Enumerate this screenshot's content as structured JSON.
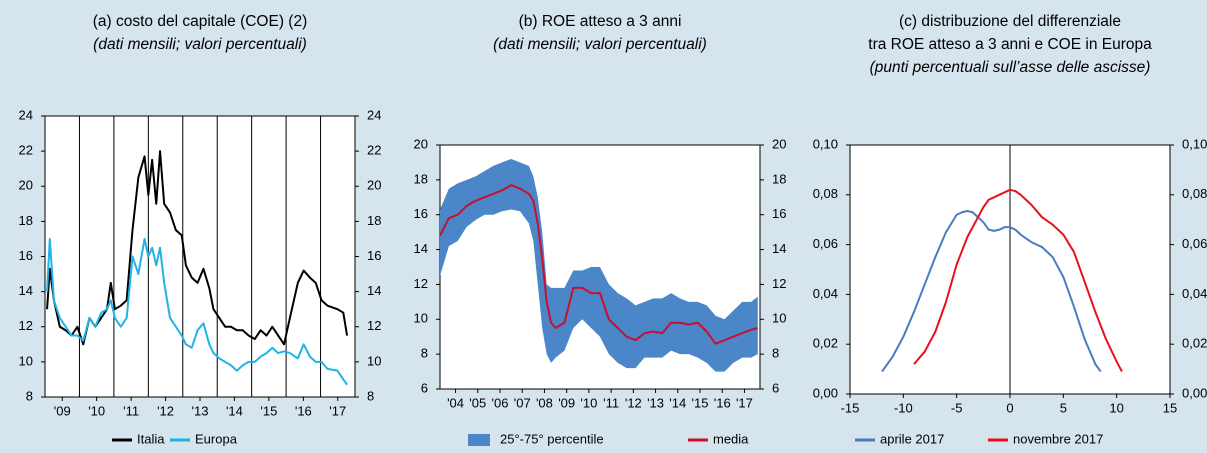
{
  "chart_data": [
    {
      "type": "line",
      "title": [
        "(a) costo del capitale (COE) (2)"
      ],
      "subtitle": "(dati mensili; valori percentuali)",
      "x": [
        2009.06,
        2009.14,
        2009.26,
        2009.43,
        2009.6,
        2009.77,
        2009.94,
        2010.11,
        2010.29,
        2010.46,
        2010.63,
        2010.8,
        2010.91,
        2011.03,
        2011.2,
        2011.37,
        2011.54,
        2011.71,
        2011.89,
        2012.0,
        2012.11,
        2012.23,
        2012.34,
        2012.46,
        2012.63,
        2012.8,
        2012.97,
        2013.09,
        2013.26,
        2013.43,
        2013.6,
        2013.77,
        2013.89,
        2014.06,
        2014.23,
        2014.4,
        2014.57,
        2014.74,
        2014.91,
        2015.09,
        2015.26,
        2015.43,
        2015.6,
        2015.77,
        2015.94,
        2016.11,
        2016.34,
        2016.51,
        2016.69,
        2016.86,
        2017.03,
        2017.2,
        2017.49,
        2017.66,
        2017.77
      ],
      "series": [
        {
          "name": "Italia",
          "color": "#000000",
          "values": [
            13,
            15.3,
            13.5,
            12,
            11.8,
            11.5,
            12,
            11,
            12.5,
            12,
            12.5,
            13,
            14.5,
            13,
            13.2,
            13.5,
            17.5,
            20.5,
            21.7,
            19.5,
            21.5,
            19,
            22,
            19,
            18.5,
            17.5,
            17.2,
            15.5,
            14.8,
            14.5,
            15.3,
            14.2,
            13,
            12.5,
            12,
            12,
            11.8,
            11.8,
            11.5,
            11.3,
            11.8,
            11.5,
            12,
            11.5,
            11,
            12.5,
            14.5,
            15.2,
            14.8,
            14.5,
            13.5,
            13.2,
            13,
            12.8,
            11.5
          ]
        },
        {
          "name": "Europa",
          "color": "#1fb4e6",
          "values": [
            14,
            17,
            13.5,
            12.5,
            12,
            11.5,
            11.5,
            11.2,
            12.5,
            12,
            12.8,
            13,
            13.5,
            12.5,
            12,
            12.5,
            16,
            15,
            17,
            16,
            16.5,
            15.5,
            16.5,
            14.5,
            12.5,
            12,
            11.5,
            11,
            10.8,
            11.8,
            12.2,
            11,
            10.5,
            10.2,
            10,
            9.8,
            9.5,
            9.8,
            10,
            10,
            10.3,
            10.5,
            10.8,
            10.5,
            10.6,
            10.5,
            10.2,
            11,
            10.3,
            10,
            10,
            9.6,
            9.5,
            9,
            8.7
          ]
        }
      ],
      "xlim": [
        2009,
        2018
      ],
      "xticks": [
        {
          "value": 2009.5,
          "label": "'09"
        },
        {
          "value": 2010.5,
          "label": "'10"
        },
        {
          "value": 2011.5,
          "label": "'11"
        },
        {
          "value": 2012.5,
          "label": "'12"
        },
        {
          "value": 2013.5,
          "label": "'13"
        },
        {
          "value": 2014.5,
          "label": "'14"
        },
        {
          "value": 2015.5,
          "label": "'15"
        },
        {
          "value": 2016.5,
          "label": "'16"
        },
        {
          "value": 2017.5,
          "label": "'17"
        }
      ],
      "xgrid": [
        2010,
        2011,
        2012,
        2013,
        2014,
        2015,
        2016,
        2017
      ],
      "ylim": [
        8,
        24
      ],
      "yticks": [
        8,
        10,
        12,
        14,
        16,
        18,
        20,
        22,
        24
      ],
      "y2lim": [
        8,
        24
      ],
      "y2ticks": [
        8,
        10,
        12,
        14,
        16,
        18,
        20,
        22,
        24
      ]
    },
    {
      "type": "line",
      "title": [
        "(b) ROE atteso a 3 anni"
      ],
      "subtitle": "(dati mensili; valori percentuali)",
      "x": [
        2003.8,
        2004.2,
        2004.6,
        2005.0,
        2005.4,
        2005.8,
        2006.2,
        2006.6,
        2007.0,
        2007.4,
        2007.8,
        2008.0,
        2008.2,
        2008.4,
        2008.6,
        2008.8,
        2009.0,
        2009.4,
        2009.8,
        2010.2,
        2010.6,
        2011.0,
        2011.4,
        2011.8,
        2012.2,
        2012.6,
        2013.0,
        2013.4,
        2013.8,
        2014.2,
        2014.6,
        2015.0,
        2015.4,
        2015.8,
        2016.2,
        2016.6,
        2017.0,
        2017.4,
        2017.8,
        2018.1
      ],
      "series": [
        {
          "name": "25°-75° percentile",
          "color": "#4a86c8",
          "kind": "band",
          "low": [
            12.5,
            14.2,
            14.5,
            15.3,
            15.7,
            16.0,
            16.0,
            16.2,
            16.3,
            16.2,
            15.5,
            14.5,
            12.0,
            9.5,
            8.0,
            7.5,
            7.8,
            8.2,
            9.5,
            10.0,
            9.5,
            9.0,
            8.0,
            7.5,
            7.2,
            7.2,
            7.8,
            7.8,
            7.8,
            8.2,
            8.0,
            8.0,
            7.8,
            7.5,
            7.0,
            7.0,
            7.5,
            7.8,
            7.8,
            8.0
          ],
          "high": [
            16.3,
            17.5,
            17.8,
            18.0,
            18.2,
            18.5,
            18.8,
            19.0,
            19.2,
            19.0,
            18.8,
            18.2,
            17.0,
            15.0,
            12.0,
            11.8,
            11.8,
            11.8,
            12.8,
            12.8,
            13.0,
            13.0,
            12.0,
            11.5,
            11.2,
            10.8,
            11.0,
            11.2,
            11.2,
            11.5,
            11.2,
            11.0,
            11.0,
            10.8,
            10.2,
            10.0,
            10.5,
            11.0,
            11.0,
            11.3
          ]
        },
        {
          "name": "media",
          "color": "#c8102e",
          "values": [
            14.8,
            15.8,
            16.0,
            16.5,
            16.8,
            17.0,
            17.2,
            17.4,
            17.7,
            17.5,
            17.2,
            16.8,
            15.5,
            13.5,
            11.0,
            9.8,
            9.5,
            9.8,
            11.8,
            11.8,
            11.5,
            11.5,
            10.0,
            9.5,
            9.0,
            8.8,
            9.2,
            9.3,
            9.2,
            9.8,
            9.8,
            9.7,
            9.8,
            9.3,
            8.6,
            8.8,
            9.0,
            9.2,
            9.4,
            9.5
          ]
        }
      ],
      "xlim": [
        2003.8,
        2018.2
      ],
      "xticks": [
        {
          "value": 2004.5,
          "label": "'04"
        },
        {
          "value": 2005.5,
          "label": "'05"
        },
        {
          "value": 2006.5,
          "label": "'06"
        },
        {
          "value": 2007.5,
          "label": "'07"
        },
        {
          "value": 2008.5,
          "label": "'08"
        },
        {
          "value": 2009.5,
          "label": "'09"
        },
        {
          "value": 2010.5,
          "label": "'10"
        },
        {
          "value": 2011.5,
          "label": "'11"
        },
        {
          "value": 2012.5,
          "label": "'12"
        },
        {
          "value": 2013.5,
          "label": "'13"
        },
        {
          "value": 2014.5,
          "label": "'14"
        },
        {
          "value": 2015.5,
          "label": "'15"
        },
        {
          "value": 2016.5,
          "label": "'16"
        },
        {
          "value": 2017.5,
          "label": "'17"
        }
      ],
      "ylim": [
        6,
        20
      ],
      "yticks": [
        6,
        8,
        10,
        12,
        14,
        16,
        18,
        20
      ],
      "y2lim": [
        6,
        20
      ],
      "y2ticks": [
        6,
        8,
        10,
        12,
        14,
        16,
        18,
        20
      ]
    },
    {
      "type": "line",
      "title": [
        "(c) distribuzione del differenziale",
        "tra ROE atteso a 3 anni e COE in Europa"
      ],
      "subtitle": "(punti percentuali sull’asse delle ascisse)",
      "series": [
        {
          "name": "aprile 2017",
          "color": "#4a7bbf",
          "x": [
            -12,
            -11,
            -10,
            -9,
            -8,
            -7,
            -6,
            -5,
            -4.5,
            -4,
            -3.5,
            -3,
            -2.5,
            -2,
            -1.5,
            -1,
            -0.5,
            0,
            0.5,
            1,
            2,
            3,
            4,
            5,
            6,
            7,
            8,
            8.5
          ],
          "values": [
            0.009,
            0.015,
            0.023,
            0.033,
            0.044,
            0.055,
            0.065,
            0.072,
            0.073,
            0.0735,
            0.073,
            0.071,
            0.069,
            0.066,
            0.0655,
            0.066,
            0.067,
            0.067,
            0.066,
            0.064,
            0.061,
            0.059,
            0.055,
            0.047,
            0.035,
            0.022,
            0.012,
            0.009
          ]
        },
        {
          "name": "novembre 2017",
          "color": "#e8101e",
          "x": [
            -9,
            -8,
            -7,
            -6,
            -5,
            -4,
            -3,
            -2.5,
            -2,
            -1.5,
            -1,
            -0.5,
            0,
            0.5,
            1,
            2,
            3,
            4,
            5,
            6,
            7,
            8,
            9,
            10,
            10.5
          ],
          "values": [
            0.012,
            0.017,
            0.025,
            0.037,
            0.052,
            0.063,
            0.071,
            0.075,
            0.078,
            0.079,
            0.08,
            0.081,
            0.082,
            0.0815,
            0.08,
            0.076,
            0.071,
            0.068,
            0.064,
            0.057,
            0.045,
            0.033,
            0.022,
            0.013,
            0.009
          ]
        }
      ],
      "xlim": [
        -15,
        15
      ],
      "xticks": [
        -15,
        -10,
        -5,
        0,
        5,
        10,
        15
      ],
      "zero_line": true,
      "ylim": [
        0,
        0.1
      ],
      "yticks": [
        {
          "value": 0,
          "label": "0,00"
        },
        {
          "value": 0.02,
          "label": "0,02"
        },
        {
          "value": 0.04,
          "label": "0,04"
        },
        {
          "value": 0.06,
          "label": "0,06"
        },
        {
          "value": 0.08,
          "label": "0,08"
        },
        {
          "value": 0.1,
          "label": "0,10"
        }
      ],
      "y2lim": [
        0,
        0.1
      ],
      "y2ticks": [
        {
          "value": 0,
          "label": "0,00"
        },
        {
          "value": 0.02,
          "label": "0,02"
        },
        {
          "value": 0.04,
          "label": "0,04"
        },
        {
          "value": 0.06,
          "label": "0,06"
        },
        {
          "value": 0.08,
          "label": "0,08"
        },
        {
          "value": 0.1,
          "label": "0,10"
        }
      ]
    }
  ]
}
